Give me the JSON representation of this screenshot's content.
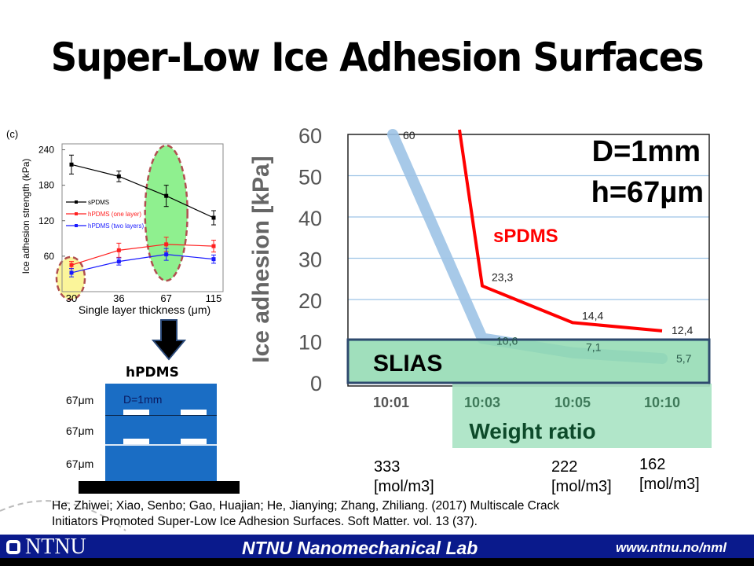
{
  "title": "Super-Low Ice Adhesion Surfaces",
  "reference": {
    "line1": "He, Zhiwei; Xiao, Senbo; Gao, Huajian; He, Jianying; Zhang, Zhiliang. (2017) Multiscale Crack",
    "line2": "Initiators Promoted Super-Low Ice Adhesion Surfaces. Soft Matter. vol. 13 (37)."
  },
  "footer": {
    "logo_text": "NTNU",
    "lab_name": "NTNU Nanomechanical Lab",
    "url": "www.ntnu.no/nml"
  },
  "diagram": {
    "title": "hPDMS",
    "layer_labels": [
      "67μm",
      "67μm",
      "67μm"
    ],
    "d_label": "D=1mm",
    "arrow": "down-arrow-icon"
  },
  "concentrations": [
    {
      "value": "333",
      "unit": "[mol/m3]"
    },
    {
      "value": "222",
      "unit": "[mol/m3]"
    },
    {
      "value": "162",
      "unit": "[mol/m3]"
    }
  ],
  "colors": {
    "accent_red": "#ff0000",
    "accent_blue": "#9dc3e6",
    "green_band": "#8fd9b0",
    "footer_blue": "#0a1a8c",
    "layer_blue": "#1a6dc4"
  },
  "chart_data": [
    {
      "type": "line",
      "panel_label": "(c)",
      "title": "",
      "xlabel": "Single layer thickness (μm)",
      "ylabel": "Ice adhesion strength (kPa)",
      "categories": [
        "30",
        "36",
        "67",
        "115"
      ],
      "yticks": [
        "240",
        "180",
        "120",
        "60"
      ],
      "ylim": [
        0,
        250
      ],
      "legend_position": "left-middle",
      "series": [
        {
          "name": "sPDMS",
          "color": "#000000",
          "values": [
            215,
            195,
            162,
            125
          ],
          "errors": [
            16,
            9,
            18,
            12
          ]
        },
        {
          "name": "hPDMS (one layer)",
          "color": "#ff2020",
          "values": [
            45,
            70,
            80,
            77
          ],
          "errors": [
            6,
            12,
            12,
            10
          ]
        },
        {
          "name": "hPDMS (two layers)",
          "color": "#1a1aff",
          "values": [
            32,
            51,
            63,
            55
          ],
          "errors": [
            7,
            6,
            10,
            7
          ]
        }
      ],
      "highlights": [
        "30",
        "67"
      ]
    },
    {
      "type": "line",
      "title": "",
      "xlabel": "Weight ratio",
      "ylabel": "Ice adhesion [kPa]",
      "categories": [
        "10:01",
        "10:03",
        "10:05",
        "10:10"
      ],
      "yticks": [
        "60",
        "50",
        "40",
        "30",
        "20",
        "10",
        "0"
      ],
      "ylim": [
        0,
        60
      ],
      "annotations": [
        "D=1mm",
        "h=67µm"
      ],
      "band": {
        "label": "SLIAS",
        "from": 0,
        "to": 10
      },
      "series": [
        {
          "name": "sPDMS",
          "color": "#ff0000",
          "values": [
            null,
            23.3,
            14.4,
            12.4
          ],
          "labels": [
            "",
            "23,3",
            "14,4",
            "12,4"
          ],
          "top_offscale": true
        },
        {
          "name": "hPDMS",
          "color": "#9dc3e6",
          "values": [
            60,
            10.6,
            7.1,
            5.7
          ],
          "labels": [
            "60",
            "10,6",
            "7,1",
            "5,7"
          ]
        }
      ]
    }
  ]
}
